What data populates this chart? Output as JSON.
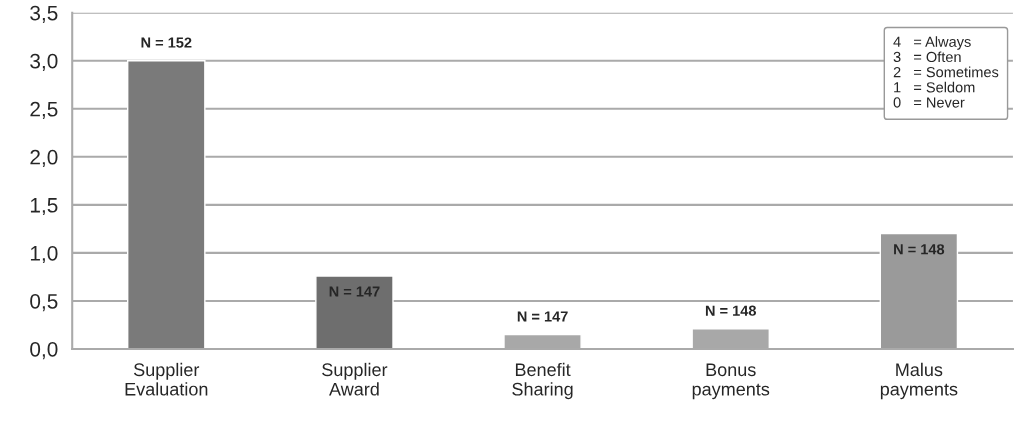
{
  "chart_data": {
    "type": "bar",
    "categories": [
      "Supplier\nEvaluation",
      "Supplier\nAward",
      "Benefit\nSharing",
      "Bonus\npayments",
      "Malus\npayments"
    ],
    "values": [
      3.0,
      0.76,
      0.15,
      0.21,
      1.2
    ],
    "colors": [
      "#7a7a7a",
      "#6e6e6e",
      "#a8a8a8",
      "#a8a8a8",
      "#9a9a9a"
    ],
    "ylim": [
      0,
      3.5
    ],
    "yticks": [
      {
        "value": 0,
        "label": "0,0"
      },
      {
        "value": 0.5,
        "label": "0,5"
      },
      {
        "value": 1.0,
        "label": "1,0"
      },
      {
        "value": 1.5,
        "label": "1,5"
      },
      {
        "value": 2.0,
        "label": "2,0"
      },
      {
        "value": 2.5,
        "label": "2,5"
      },
      {
        "value": 3.0,
        "label": "3,0"
      },
      {
        "value": 3.5,
        "label": "3,5"
      }
    ],
    "grid": "y",
    "annotations": [
      "N = 152",
      "N = 147",
      "N = 147",
      "N = 148",
      "N = 148",
      "4   = Always\n3   = Often\n2   = Sometimes\n1   = Seldom\n0   = Never"
    ]
  }
}
